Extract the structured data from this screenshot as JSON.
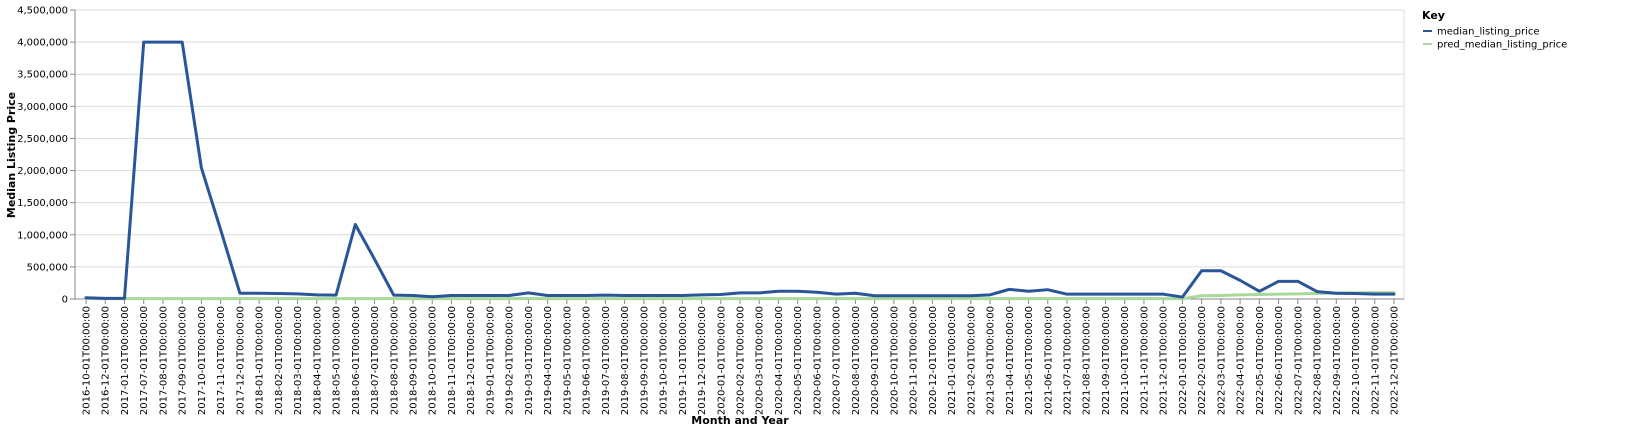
{
  "chart_data": {
    "type": "line",
    "xlabel": "Month and Year",
    "ylabel": "Median Listing Price",
    "ylim": [
      0,
      4500000
    ],
    "y_ticks": [
      "0",
      "500,000",
      "1,000,000",
      "1,500,000",
      "2,000,000",
      "2,500,000",
      "3,000,000",
      "3,500,000",
      "4,000,000",
      "4,500,000"
    ],
    "grid": true,
    "legend": {
      "title": "Key",
      "placement": "top-right"
    },
    "x": [
      "2016-10-01T00:00:00",
      "2016-12-01T00:00:00",
      "2017-01-01T00:00:00",
      "2017-07-01T00:00:00",
      "2017-08-01T00:00:00",
      "2017-09-01T00:00:00",
      "2017-10-01T00:00:00",
      "2017-11-01T00:00:00",
      "2017-12-01T00:00:00",
      "2018-01-01T00:00:00",
      "2018-02-01T00:00:00",
      "2018-03-01T00:00:00",
      "2018-04-01T00:00:00",
      "2018-05-01T00:00:00",
      "2018-06-01T00:00:00",
      "2018-07-01T00:00:00",
      "2018-08-01T00:00:00",
      "2018-09-01T00:00:00",
      "2018-10-01T00:00:00",
      "2018-11-01T00:00:00",
      "2018-12-01T00:00:00",
      "2019-01-01T00:00:00",
      "2019-02-01T00:00:00",
      "2019-03-01T00:00:00",
      "2019-04-01T00:00:00",
      "2019-05-01T00:00:00",
      "2019-06-01T00:00:00",
      "2019-07-01T00:00:00",
      "2019-08-01T00:00:00",
      "2019-09-01T00:00:00",
      "2019-10-01T00:00:00",
      "2019-11-01T00:00:00",
      "2019-12-01T00:00:00",
      "2020-01-01T00:00:00",
      "2020-02-01T00:00:00",
      "2020-03-01T00:00:00",
      "2020-04-01T00:00:00",
      "2020-05-01T00:00:00",
      "2020-06-01T00:00:00",
      "2020-07-01T00:00:00",
      "2020-08-01T00:00:00",
      "2020-09-01T00:00:00",
      "2020-10-01T00:00:00",
      "2020-11-01T00:00:00",
      "2020-12-01T00:00:00",
      "2021-01-01T00:00:00",
      "2021-02-01T00:00:00",
      "2021-03-01T00:00:00",
      "2021-04-01T00:00:00",
      "2021-05-01T00:00:00",
      "2021-06-01T00:00:00",
      "2021-07-01T00:00:00",
      "2021-08-01T00:00:00",
      "2021-09-01T00:00:00",
      "2021-10-01T00:00:00",
      "2021-11-01T00:00:00",
      "2021-12-01T00:00:00",
      "2022-01-01T00:00:00",
      "2022-02-01T00:00:00",
      "2022-03-01T00:00:00",
      "2022-04-01T00:00:00",
      "2022-05-01T00:00:00",
      "2022-06-01T00:00:00",
      "2022-07-01T00:00:00",
      "2022-08-01T00:00:00",
      "2022-09-01T00:00:00",
      "2022-10-01T00:00:00",
      "2022-11-01T00:00:00",
      "2022-12-01T00:00:00"
    ],
    "series": [
      {
        "name": "median_listing_price",
        "color": "#2a5599",
        "values": [
          20000,
          10000,
          10000,
          4000000,
          4000000,
          4000000,
          2040000,
          1080000,
          90000,
          90000,
          85000,
          80000,
          65000,
          60000,
          1160000,
          620000,
          60000,
          55000,
          35000,
          55000,
          55000,
          55000,
          55000,
          95000,
          55000,
          55000,
          55000,
          60000,
          55000,
          55000,
          55000,
          55000,
          65000,
          70000,
          95000,
          95000,
          120000,
          120000,
          105000,
          75000,
          90000,
          50000,
          50000,
          50000,
          50000,
          50000,
          50000,
          65000,
          150000,
          120000,
          145000,
          75000,
          75000,
          75000,
          75000,
          75000,
          75000,
          30000,
          440000,
          440000,
          290000,
          120000,
          275000,
          275000,
          115000,
          90000,
          85000,
          75000,
          75000
        ]
      },
      {
        "name": "pred_median_listing_price",
        "color": "#a8d99b",
        "values": [
          5000,
          5000,
          5000,
          5000,
          5000,
          5000,
          5000,
          5000,
          5000,
          5000,
          5000,
          5000,
          5000,
          5000,
          5000,
          5000,
          5000,
          5000,
          5000,
          5000,
          5000,
          5000,
          5000,
          5000,
          5000,
          5000,
          5000,
          5000,
          5000,
          5000,
          5000,
          5000,
          5000,
          5000,
          5000,
          5000,
          5000,
          5000,
          5000,
          5000,
          5000,
          5000,
          5000,
          5000,
          5000,
          5000,
          5000,
          5000,
          5000,
          5000,
          5000,
          5000,
          5000,
          5000,
          5000,
          5000,
          5000,
          5000,
          50000,
          55000,
          65000,
          70000,
          75000,
          80000,
          85000,
          90000,
          95000,
          100000,
          100000
        ]
      }
    ]
  }
}
